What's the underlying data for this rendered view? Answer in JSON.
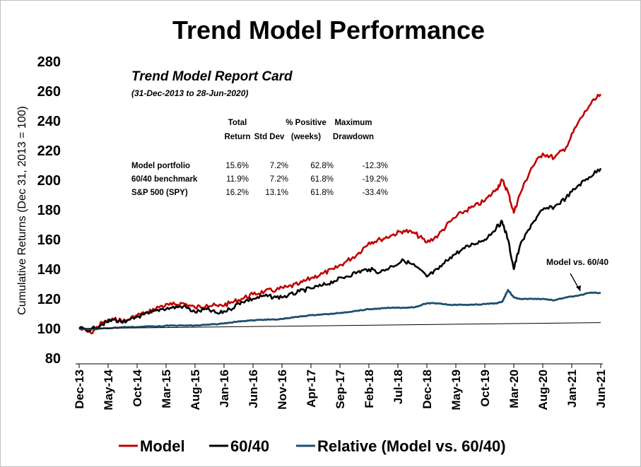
{
  "chart_data": {
    "type": "line",
    "title": "Trend Model Performance",
    "ylabel": "Cumulative Returns (Dec 31, 2013 = 100)",
    "xlabel": "",
    "ylim": [
      80,
      280
    ],
    "yticks": [
      80,
      100,
      120,
      140,
      160,
      180,
      200,
      220,
      240,
      260,
      280
    ],
    "x_start": "Dec-13",
    "x_end": "Jun-21",
    "xtick_labels": [
      "Dec-13",
      "May-14",
      "Oct-14",
      "Mar-15",
      "Aug-15",
      "Jan-16",
      "Jun-16",
      "Nov-16",
      "Apr-17",
      "Sep-17",
      "Feb-18",
      "Jul-18",
      "Dec-18",
      "May-19",
      "Oct-19",
      "Mar-20",
      "Aug-20",
      "Jan-21",
      "Jun-21"
    ],
    "grid": false,
    "legend_position": "bottom",
    "series": [
      {
        "name": "Model",
        "color": "#c00000",
        "x": [
          "Dec-13",
          "Feb-14",
          "Apr-14",
          "Jun-14",
          "Aug-14",
          "Oct-14",
          "Dec-14",
          "Feb-15",
          "Apr-15",
          "Jun-15",
          "Aug-15",
          "Oct-15",
          "Dec-15",
          "Feb-16",
          "Apr-16",
          "Jun-16",
          "Aug-16",
          "Oct-16",
          "Dec-16",
          "Feb-17",
          "Apr-17",
          "Jun-17",
          "Aug-17",
          "Oct-17",
          "Dec-17",
          "Feb-18",
          "Apr-18",
          "Jun-18",
          "Aug-18",
          "Oct-18",
          "Dec-18",
          "Feb-19",
          "Apr-19",
          "Jun-19",
          "Aug-19",
          "Oct-19",
          "Dec-19",
          "Jan-20",
          "Feb-20",
          "Mar-20",
          "Apr-20",
          "Jun-20",
          "Aug-20",
          "Oct-20",
          "Dec-20",
          "Feb-21",
          "Apr-21",
          "Jun-21"
        ],
        "values": [
          100,
          97,
          104,
          106,
          105,
          109,
          111,
          115,
          116,
          117,
          114,
          116,
          115,
          117,
          120,
          123,
          125,
          126,
          128,
          130,
          134,
          137,
          140,
          145,
          150,
          158,
          160,
          163,
          166,
          164,
          158,
          163,
          172,
          178,
          182,
          186,
          194,
          200,
          192,
          178,
          190,
          208,
          218,
          215,
          222,
          238,
          250,
          258
        ]
      },
      {
        "name": "60/40",
        "color": "#000000",
        "x": [
          "Dec-13",
          "Feb-14",
          "Apr-14",
          "Jun-14",
          "Aug-14",
          "Oct-14",
          "Dec-14",
          "Feb-15",
          "Apr-15",
          "Jun-15",
          "Aug-15",
          "Oct-15",
          "Dec-15",
          "Feb-16",
          "Apr-16",
          "Jun-16",
          "Aug-16",
          "Oct-16",
          "Dec-16",
          "Feb-17",
          "Apr-17",
          "Jun-17",
          "Aug-17",
          "Oct-17",
          "Dec-17",
          "Feb-18",
          "Apr-18",
          "Jun-18",
          "Aug-18",
          "Oct-18",
          "Dec-18",
          "Feb-19",
          "Apr-19",
          "Jun-19",
          "Aug-19",
          "Oct-19",
          "Dec-19",
          "Jan-20",
          "Feb-20",
          "Mar-20",
          "Apr-20",
          "Jun-20",
          "Aug-20",
          "Oct-20",
          "Dec-20",
          "Feb-21",
          "Apr-21",
          "Jun-21"
        ],
        "values": [
          100,
          99,
          103,
          106,
          104,
          108,
          110,
          113,
          114,
          115,
          111,
          113,
          110,
          113,
          118,
          120,
          122,
          121,
          122,
          125,
          127,
          129,
          132,
          135,
          138,
          140,
          138,
          142,
          146,
          142,
          135,
          140,
          148,
          153,
          157,
          160,
          168,
          172,
          160,
          140,
          155,
          170,
          180,
          182,
          188,
          196,
          202,
          208
        ]
      },
      {
        "name": "Relative (Model vs. 60/40)",
        "color": "#1f4e6e",
        "x": [
          "Dec-13",
          "Feb-14",
          "Apr-14",
          "Jun-14",
          "Aug-14",
          "Oct-14",
          "Dec-14",
          "Feb-15",
          "Apr-15",
          "Jun-15",
          "Aug-15",
          "Oct-15",
          "Dec-15",
          "Feb-16",
          "Apr-16",
          "Jun-16",
          "Aug-16",
          "Oct-16",
          "Dec-16",
          "Feb-17",
          "Apr-17",
          "Jun-17",
          "Aug-17",
          "Oct-17",
          "Dec-17",
          "Feb-18",
          "Apr-18",
          "Jun-18",
          "Aug-18",
          "Oct-18",
          "Dec-18",
          "Feb-19",
          "Apr-19",
          "Jun-19",
          "Aug-19",
          "Oct-19",
          "Dec-19",
          "Jan-20",
          "Feb-20",
          "Mar-20",
          "Apr-20",
          "Jun-20",
          "Aug-20",
          "Oct-20",
          "Dec-20",
          "Feb-21",
          "Apr-21",
          "Jun-21"
        ],
        "values": [
          100,
          99.5,
          100,
          100.5,
          101,
          101,
          101.5,
          101.5,
          102,
          102,
          102,
          102.5,
          103,
          104,
          105,
          105.5,
          106,
          106,
          107,
          108,
          109,
          109.5,
          110,
          111,
          112,
          113,
          113.5,
          114,
          114,
          114.5,
          117,
          117,
          116,
          116,
          116,
          116.5,
          117,
          118,
          126,
          121,
          120,
          120,
          120,
          119,
          121,
          122,
          124,
          124
        ]
      },
      {
        "name": "",
        "color": "#000000",
        "x": [
          "Dec-13",
          "Jun-21"
        ],
        "values": [
          100,
          104
        ]
      }
    ],
    "annotations": [
      {
        "text": "Model vs. 60/40",
        "x": "Jan-21",
        "y": 140
      }
    ],
    "report_card": {
      "title": "Trend Model Report Card",
      "subtitle": "(31-Dec-2013 to 28-Jun-2020)",
      "headers": [
        {
          "line1": "Total",
          "line2": "Return"
        },
        {
          "line1": "",
          "line2": "Std Dev"
        },
        {
          "line1": "% Positive",
          "line2": "(weeks)"
        },
        {
          "line1": "Maximum",
          "line2": "Drawdown"
        }
      ],
      "rows": [
        {
          "label": "Model portfolio",
          "values": [
            "15.6%",
            "7.2%",
            "62.8%",
            "-12.3%"
          ]
        },
        {
          "label": "60/40 benchmark",
          "values": [
            "11.9%",
            "7.2%",
            "61.8%",
            "-19.2%"
          ]
        },
        {
          "label": "S&P 500 (SPY)",
          "values": [
            "16.2%",
            "13.1%",
            "61.8%",
            "-33.4%"
          ]
        }
      ]
    }
  }
}
